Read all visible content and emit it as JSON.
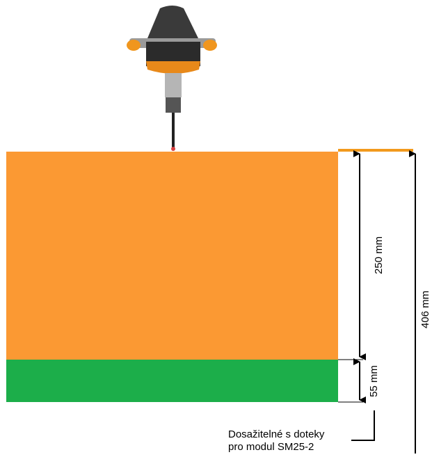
{
  "dimensions": {
    "upper": "250 mm",
    "lower": "55 mm",
    "total": "406 mm"
  },
  "note": {
    "line1": "Dosažitelné s doteky",
    "line2": "pro modul SM25-2"
  }
}
